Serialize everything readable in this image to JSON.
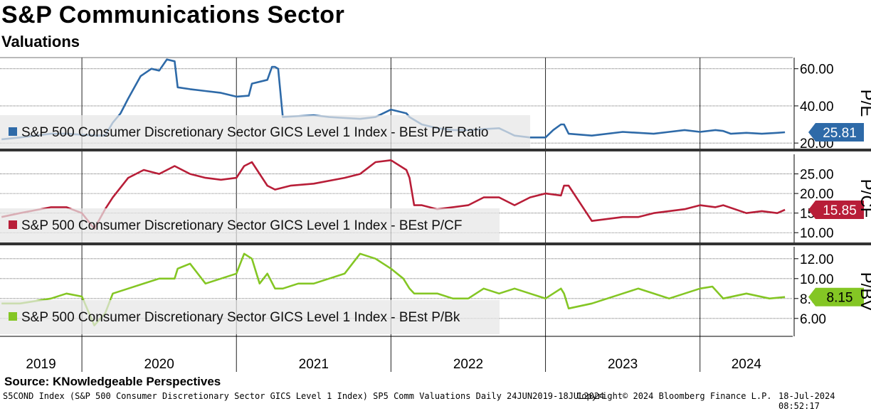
{
  "header": {
    "title": "S&P Communications Sector",
    "subtitle": "Valuations"
  },
  "source_text": "Source: KNowledgeable Perspectives",
  "footer": {
    "left": "S5COND Index (S&P 500 Consumer Discretionary Sector GICS Level 1 Index) SP5 Comm Valuations  Daily 24JUN2019-18JUL2024",
    "center": "Copyright© 2024 Bloomberg Finance L.P.",
    "right": "18-Jul-2024 08:52:17"
  },
  "chart_data": [
    {
      "type": "line",
      "panel": "P/E",
      "axis_title": "P/E",
      "legend": "S&P 500 Consumer Discretionary Sector GICS Level 1 Index - BEst P/E Ratio",
      "color": "#2e6aa8",
      "last_value": 25.81,
      "last_label": "25.81",
      "ylim": [
        17,
        66
      ],
      "yticks": [
        20,
        40,
        60
      ],
      "ytick_labels": [
        "20.00",
        "40.00",
        "60.00"
      ],
      "x": [
        2019.48,
        2019.6,
        2019.8,
        2019.9,
        2020.0,
        2020.1,
        2020.15,
        2020.2,
        2020.25,
        2020.3,
        2020.38,
        2020.45,
        2020.5,
        2020.55,
        2020.6,
        2020.62,
        2020.7,
        2020.8,
        2020.9,
        2021.0,
        2021.08,
        2021.1,
        2021.2,
        2021.23,
        2021.25,
        2021.27,
        2021.3,
        2021.5,
        2021.6,
        2021.8,
        2021.9,
        2022.0,
        2022.05,
        2022.1,
        2022.12,
        2022.2,
        2022.3,
        2022.4,
        2022.5,
        2022.6,
        2022.7,
        2022.75,
        2022.8,
        2022.9,
        2023.0,
        2023.05,
        2023.1,
        2023.12,
        2023.15,
        2023.3,
        2023.5,
        2023.7,
        2023.8,
        2023.9,
        2024.0,
        2024.1,
        2024.15,
        2024.2,
        2024.3,
        2024.4,
        2024.5,
        2024.55
      ],
      "values": [
        22,
        23,
        25,
        25,
        24.5,
        24,
        24,
        31,
        36,
        44,
        56,
        60,
        59,
        65,
        64,
        50,
        49,
        48,
        47,
        45,
        45.5,
        52,
        54,
        61,
        61,
        60,
        34,
        35,
        34,
        33,
        34,
        38,
        37,
        36,
        34,
        30,
        28,
        27,
        27,
        27.5,
        28,
        26,
        24,
        23,
        23,
        27,
        30,
        30,
        25,
        24,
        26,
        25,
        26,
        27,
        26,
        27,
        26.5,
        25,
        25.5,
        25,
        25.5,
        25.81
      ]
    },
    {
      "type": "line",
      "panel": "P/CF",
      "axis_title": "P/CF",
      "legend": "S&P 500 Consumer Discretionary Sector GICS Level 1 Index - BEst P/CF",
      "color": "#b81e38",
      "last_value": 15.85,
      "last_label": "15.85",
      "ylim": [
        7.5,
        30
      ],
      "yticks": [
        10,
        15,
        20,
        25
      ],
      "ytick_labels": [
        "10.00",
        "15.00",
        "20.00",
        "25.00"
      ],
      "x": [
        2019.48,
        2019.6,
        2019.8,
        2019.9,
        2020.0,
        2020.08,
        2020.15,
        2020.2,
        2020.3,
        2020.4,
        2020.5,
        2020.6,
        2020.7,
        2020.8,
        2020.9,
        2021.0,
        2021.05,
        2021.1,
        2021.2,
        2021.25,
        2021.35,
        2021.5,
        2021.7,
        2021.8,
        2021.9,
        2022.0,
        2022.1,
        2022.12,
        2022.15,
        2022.2,
        2022.3,
        2022.4,
        2022.5,
        2022.6,
        2022.7,
        2022.8,
        2022.9,
        2023.0,
        2023.1,
        2023.12,
        2023.15,
        2023.3,
        2023.5,
        2023.6,
        2023.7,
        2023.8,
        2023.9,
        2024.0,
        2024.1,
        2024.15,
        2024.3,
        2024.4,
        2024.5,
        2024.55
      ],
      "values": [
        14,
        15,
        16.5,
        16.5,
        15,
        11,
        16,
        19,
        24,
        26,
        25,
        27,
        25,
        24,
        23.5,
        24,
        27,
        28,
        22,
        21,
        22,
        22.5,
        24,
        25,
        28,
        28.5,
        26,
        24,
        17,
        17,
        16,
        16.5,
        17,
        19,
        19,
        17,
        19,
        20,
        19.5,
        22,
        22,
        13,
        14,
        14,
        15,
        15.5,
        16,
        17,
        16.5,
        17,
        15,
        15.5,
        15,
        15.85
      ]
    },
    {
      "type": "line",
      "panel": "P/BV",
      "axis_title": "P/BV",
      "legend": "S&P 500 Consumer Discretionary Sector GICS Level 1 Index - BEst P/Bk",
      "color": "#84c624",
      "last_value": 8.15,
      "last_label": "8.15",
      "ylim": [
        4.2,
        13.2
      ],
      "yticks": [
        6,
        8,
        10,
        12
      ],
      "ytick_labels": [
        "6.00",
        "8.00",
        "10.00",
        "12.00"
      ],
      "x": [
        2019.48,
        2019.6,
        2019.8,
        2019.9,
        2020.0,
        2020.08,
        2020.15,
        2020.2,
        2020.3,
        2020.4,
        2020.5,
        2020.6,
        2020.62,
        2020.7,
        2020.8,
        2020.9,
        2021.0,
        2021.05,
        2021.1,
        2021.15,
        2021.2,
        2021.25,
        2021.3,
        2021.4,
        2021.5,
        2021.6,
        2021.7,
        2021.8,
        2021.9,
        2022.0,
        2022.08,
        2022.12,
        2022.15,
        2022.3,
        2022.4,
        2022.5,
        2022.6,
        2022.7,
        2022.8,
        2022.9,
        2023.0,
        2023.1,
        2023.12,
        2023.15,
        2023.3,
        2023.5,
        2023.6,
        2023.7,
        2023.8,
        2023.9,
        2024.0,
        2024.08,
        2024.15,
        2024.3,
        2024.45,
        2024.55
      ],
      "values": [
        7.5,
        7.5,
        8,
        8.5,
        8.2,
        5.3,
        6.5,
        8.5,
        9,
        9.5,
        10,
        10,
        11,
        11.5,
        9.5,
        10,
        10.5,
        12.5,
        12,
        9.5,
        10.5,
        9,
        9,
        9.5,
        9.5,
        10,
        10.5,
        12.5,
        12,
        11,
        10,
        9,
        8.5,
        8.5,
        8,
        8,
        9,
        8.5,
        9,
        8.5,
        8,
        9,
        8.5,
        7,
        7.5,
        8.5,
        9,
        8.5,
        8,
        8.5,
        9,
        9.2,
        8,
        8.5,
        8,
        8.15
      ]
    }
  ],
  "x_axis": {
    "years": [
      "2019",
      "2020",
      "2021",
      "2022",
      "2023",
      "2024"
    ],
    "xlim": [
      2019.47,
      2024.6
    ]
  }
}
